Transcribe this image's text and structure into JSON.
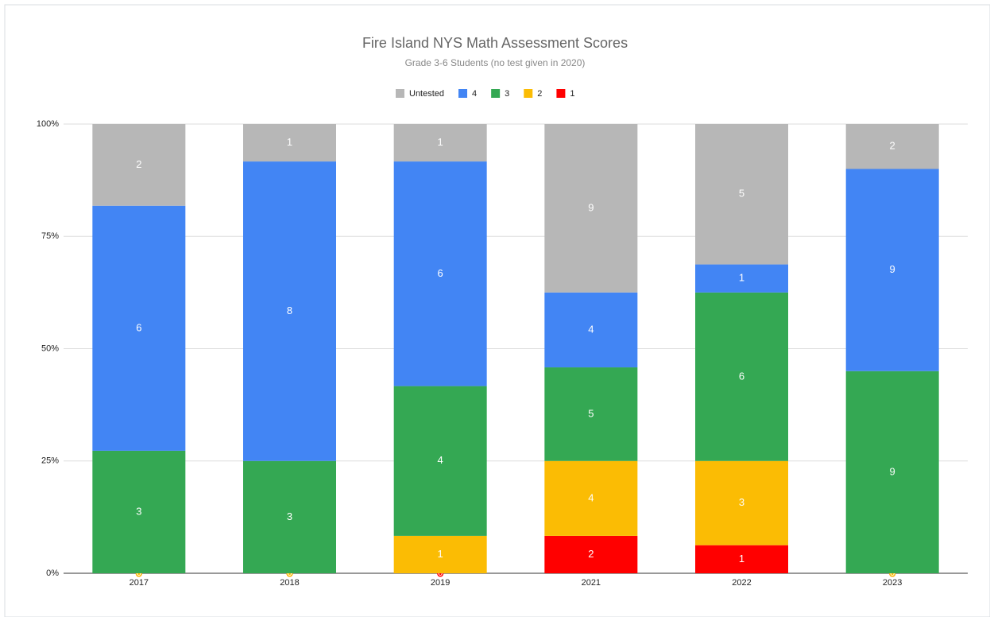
{
  "chart_data": {
    "type": "bar",
    "stacking": "percent",
    "title": "Fire Island NYS Math Assessment Scores",
    "subtitle": "Grade 3-6 Students (no test given in 2020)",
    "categories": [
      "2017",
      "2018",
      "2019",
      "2021",
      "2022",
      "2023"
    ],
    "series": [
      {
        "name": "Untested",
        "color": "#b7b7b7",
        "values": [
          2,
          1,
          1,
          9,
          5,
          2
        ]
      },
      {
        "name": "4",
        "color": "#4285f4",
        "values": [
          6,
          8,
          6,
          4,
          1,
          9
        ]
      },
      {
        "name": "3",
        "color": "#34a853",
        "values": [
          3,
          3,
          4,
          5,
          6,
          9
        ]
      },
      {
        "name": "2",
        "color": "#fbbc04",
        "values": [
          0,
          0,
          1,
          4,
          3,
          0
        ]
      },
      {
        "name": "1",
        "color": "#ff0000",
        "values": [
          0,
          0,
          0,
          2,
          1,
          0
        ]
      }
    ],
    "ylim": [
      0,
      100
    ],
    "yticks": [
      {
        "value": 0,
        "label": "0%"
      },
      {
        "value": 25,
        "label": "25%"
      },
      {
        "value": 50,
        "label": "50%"
      },
      {
        "value": 75,
        "label": "75%"
      },
      {
        "value": 100,
        "label": "100%"
      }
    ],
    "grid": true,
    "legend": "top"
  }
}
